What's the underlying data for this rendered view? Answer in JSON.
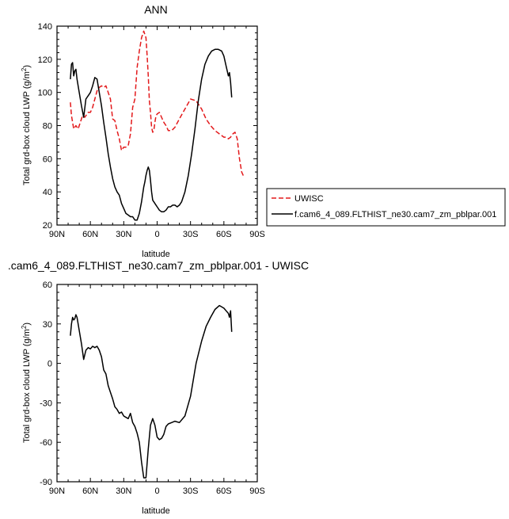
{
  "chart_data": [
    {
      "type": "line",
      "title": "ANN",
      "xlabel": "latitude",
      "ylabel": "Total grd-box cloud LWP (g/m²)",
      "xlim": [
        90,
        -90
      ],
      "ylim": [
        20,
        140
      ],
      "xticks": [
        90,
        60,
        30,
        0,
        -30,
        -60,
        -90
      ],
      "xtick_labels": [
        "90N",
        "60N",
        "30N",
        "0",
        "30S",
        "60S",
        "90S"
      ],
      "yticks": [
        20,
        40,
        60,
        80,
        100,
        120,
        140
      ],
      "legend_position": "right",
      "series": [
        {
          "name": "UWISC",
          "color": "#e31a1c",
          "dash": "dashed",
          "x": [
            78,
            77,
            75,
            73,
            71,
            69,
            67,
            65,
            62,
            60,
            58,
            56,
            54,
            52,
            50,
            48,
            46,
            44,
            42,
            40,
            38,
            36,
            34,
            32,
            30,
            28,
            26,
            24,
            22,
            20,
            18,
            16,
            14,
            12,
            10,
            9,
            8,
            7,
            6,
            5,
            4,
            3,
            2,
            1,
            0,
            -2,
            -4,
            -6,
            -8,
            -10,
            -13,
            -16,
            -20,
            -25,
            -30,
            -35,
            -40,
            -44,
            -48,
            -52,
            -56,
            -60,
            -62,
            -64,
            -66,
            -68,
            -70,
            -72,
            -74,
            -76,
            -78
          ],
          "y": [
            94,
            86,
            78,
            80,
            78,
            82,
            86,
            85,
            88,
            88,
            91,
            96,
            101,
            103,
            104,
            103,
            104,
            100,
            96,
            84,
            83,
            77,
            72,
            65,
            67,
            67,
            68,
            75,
            91,
            96,
            115,
            125,
            133,
            137,
            133,
            122,
            110,
            95,
            88,
            79,
            76,
            77,
            82,
            86,
            87,
            88,
            85,
            82,
            80,
            77,
            77,
            79,
            84,
            90,
            96,
            95,
            90,
            84,
            80,
            77,
            75,
            73,
            73,
            72,
            73,
            75,
            76,
            72,
            60,
            52,
            49
          ]
        },
        {
          "name": "f.cam6_4_089.FLTHIST_ne30.cam7_zm_pblpar.001",
          "color": "#000000",
          "dash": "solid",
          "x": [
            78,
            77,
            76,
            75,
            74,
            73,
            72,
            70,
            68,
            66,
            64,
            62,
            60,
            58,
            56,
            54,
            52,
            50,
            48,
            46,
            44,
            42,
            40,
            38,
            36,
            34,
            32,
            30,
            28,
            26,
            24,
            22,
            20,
            18,
            16,
            14,
            12,
            11,
            10,
            9,
            8,
            7,
            6,
            5,
            4,
            3,
            2,
            1,
            0,
            -2,
            -4,
            -6,
            -8,
            -10,
            -12,
            -14,
            -16,
            -18,
            -20,
            -22,
            -25,
            -28,
            -31,
            -34,
            -37,
            -40,
            -43,
            -46,
            -49,
            -52,
            -55,
            -58,
            -60,
            -62,
            -64,
            -65,
            -66,
            -67
          ],
          "y": [
            108,
            117,
            118,
            110,
            113,
            114,
            108,
            100,
            92,
            85,
            96,
            98,
            100,
            104,
            109,
            108,
            100,
            92,
            82,
            73,
            63,
            55,
            48,
            43,
            40,
            38,
            33,
            30,
            27,
            26,
            25,
            25,
            23,
            23,
            27,
            34,
            43,
            46,
            50,
            53,
            55,
            53,
            47,
            40,
            35,
            34,
            33,
            32,
            31,
            29,
            28,
            28,
            29,
            31,
            31,
            32,
            32,
            31,
            32,
            34,
            40,
            50,
            63,
            78,
            95,
            108,
            117,
            122,
            125,
            126,
            126,
            125,
            122,
            116,
            110,
            112,
            106,
            97
          ]
        }
      ]
    },
    {
      "type": "line",
      "title": ".cam6_4_089.FLTHIST_ne30.cam7_zm_pblpar.001 - UWISC",
      "xlabel": "latitude",
      "ylabel": "Total grd-box cloud LWP (g/m²)",
      "xlim": [
        90,
        -90
      ],
      "ylim": [
        -90,
        60
      ],
      "xticks": [
        90,
        60,
        30,
        0,
        -30,
        -60,
        -90
      ],
      "xtick_labels": [
        "90N",
        "60N",
        "30N",
        "0",
        "30S",
        "60S",
        "90S"
      ],
      "yticks": [
        -90,
        -60,
        -30,
        0,
        30,
        60
      ],
      "series": [
        {
          "color": "#000000",
          "dash": "solid",
          "x": [
            78,
            77,
            76,
            75,
            74,
            73,
            72,
            71,
            70,
            68,
            66,
            64,
            62,
            60,
            58,
            56,
            54,
            52,
            50,
            48,
            46,
            44,
            42,
            40,
            38,
            36,
            34,
            32,
            30,
            28,
            26,
            24,
            22,
            20,
            18,
            16,
            14,
            12,
            10,
            8,
            6,
            4,
            2,
            0,
            -2,
            -4,
            -6,
            -8,
            -10,
            -13,
            -16,
            -20,
            -25,
            -30,
            -35,
            -40,
            -44,
            -48,
            -52,
            -56,
            -60,
            -62,
            -64,
            -65,
            -66,
            -67
          ],
          "y": [
            21,
            30,
            35,
            33,
            34,
            37,
            35,
            30,
            25,
            15,
            3,
            10,
            12,
            11,
            13,
            12,
            13,
            10,
            5,
            -5,
            -8,
            -17,
            -22,
            -27,
            -33,
            -35,
            -38,
            -37,
            -40,
            -41,
            -42,
            -38,
            -45,
            -48,
            -53,
            -60,
            -75,
            -87,
            -87,
            -65,
            -47,
            -42,
            -47,
            -56,
            -58,
            -57,
            -54,
            -48,
            -46,
            -45,
            -44,
            -45,
            -40,
            -25,
            0,
            17,
            28,
            35,
            41,
            44,
            42,
            40,
            38,
            35,
            40,
            24
          ]
        }
      ]
    }
  ]
}
